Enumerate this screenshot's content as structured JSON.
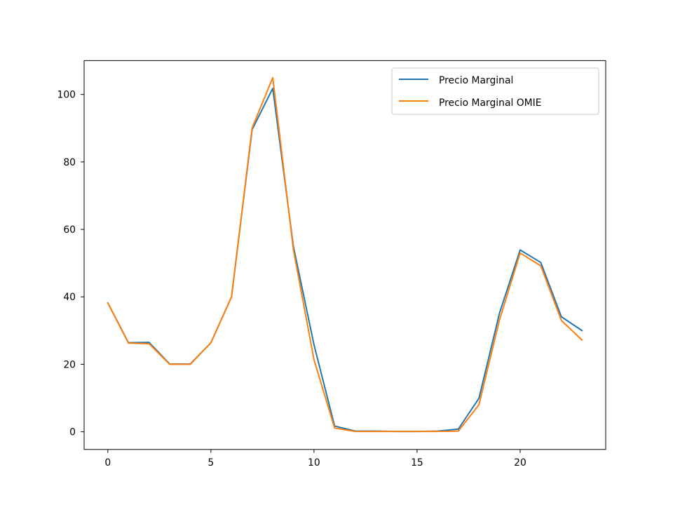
{
  "chart_data": {
    "type": "line",
    "title": "",
    "xlabel": "",
    "ylabel": "",
    "xlim": [
      -1.15,
      24.15
    ],
    "ylim": [
      -5.24,
      110.04
    ],
    "xticks": [
      0,
      5,
      10,
      15,
      20
    ],
    "yticks": [
      0,
      20,
      40,
      60,
      80,
      100
    ],
    "grid": false,
    "legend_position": "top-right",
    "x": [
      0,
      1,
      2,
      3,
      4,
      5,
      6,
      7,
      8,
      9,
      10,
      11,
      12,
      13,
      14,
      15,
      16,
      17,
      18,
      19,
      20,
      21,
      22,
      23
    ],
    "series": [
      {
        "name": "Precio Marginal",
        "color": "#1f77b4",
        "values": [
          38.2,
          26.4,
          26.5,
          20.1,
          20.1,
          26.4,
          40.0,
          89.6,
          101.8,
          55.0,
          25.8,
          1.7,
          0.2,
          0.2,
          0.1,
          0.1,
          0.2,
          0.8,
          9.9,
          35.2,
          53.9,
          50.2,
          34.1,
          30.0
        ]
      },
      {
        "name": "Precio Marginal OMIE",
        "color": "#ff7f0e",
        "values": [
          38.2,
          26.3,
          26.1,
          20.0,
          20.0,
          26.4,
          40.0,
          90.1,
          105.0,
          54.0,
          21.4,
          1.1,
          0.1,
          0.1,
          0.1,
          0.1,
          0.1,
          0.2,
          8.0,
          33.2,
          53.0,
          49.2,
          33.0,
          27.2
        ]
      }
    ]
  }
}
